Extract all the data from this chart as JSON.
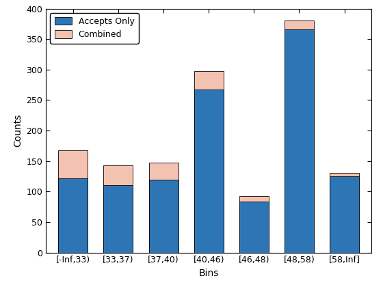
{
  "categories": [
    "[-Inf,33)",
    "[33,37)",
    "[37,40)",
    "[40,46)",
    "[46,48)",
    "[48,58)",
    "[58,Inf]"
  ],
  "accepts_only": [
    122,
    110,
    119,
    267,
    84,
    366,
    125
  ],
  "combined": [
    168,
    143,
    147,
    298,
    93,
    380,
    131
  ],
  "bar_color_accepts": "#2E75B6",
  "bar_color_combined": "#F4C2B0",
  "xlabel": "Bins",
  "ylabel": "Counts",
  "ylim": [
    0,
    400
  ],
  "yticks": [
    0,
    50,
    100,
    150,
    200,
    250,
    300,
    350,
    400
  ],
  "legend_accepts": "Accepts Only",
  "legend_combined": "Combined",
  "bar_width": 0.65,
  "edgecolor": "#000000",
  "bg_color": "#ffffff"
}
